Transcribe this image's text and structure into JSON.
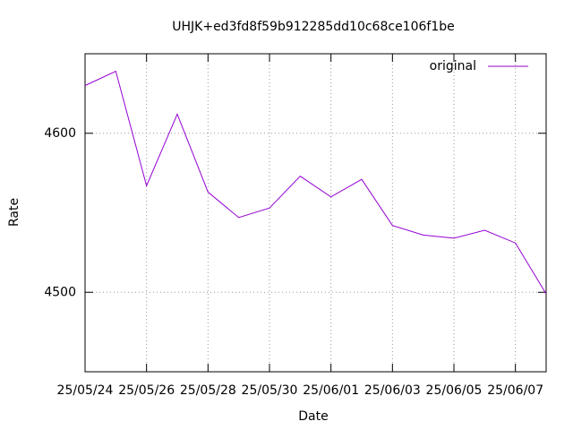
{
  "chart_data": {
    "type": "line",
    "title": "UHJK+ed3fd8f59b912285dd10c68ce106f1be",
    "xlabel": "Date",
    "ylabel": "Rate",
    "x": [
      "25/05/24",
      "25/05/25",
      "25/05/26",
      "25/05/27",
      "25/05/28",
      "25/05/29",
      "25/05/30",
      "25/05/31",
      "25/06/01",
      "25/06/02",
      "25/06/03",
      "25/06/04",
      "25/06/05",
      "25/06/06",
      "25/06/07",
      "25/06/08"
    ],
    "series": [
      {
        "name": "original",
        "color": "#9400d3",
        "values": [
          4630,
          4639,
          4567,
          4612,
          4563,
          4547,
          4553,
          4573,
          4560,
          4571,
          4542,
          4536,
          4534,
          4539,
          4531,
          4499
        ]
      }
    ],
    "xlim": [
      "25/05/24",
      "25/06/08"
    ],
    "xticks": [
      "25/05/24",
      "25/05/26",
      "25/05/28",
      "25/05/30",
      "25/06/01",
      "25/06/03",
      "25/06/05",
      "25/06/07"
    ],
    "ylim": [
      4450,
      4650
    ],
    "yticks": [
      4500,
      4600
    ],
    "grid": true,
    "legend": "upper right"
  }
}
